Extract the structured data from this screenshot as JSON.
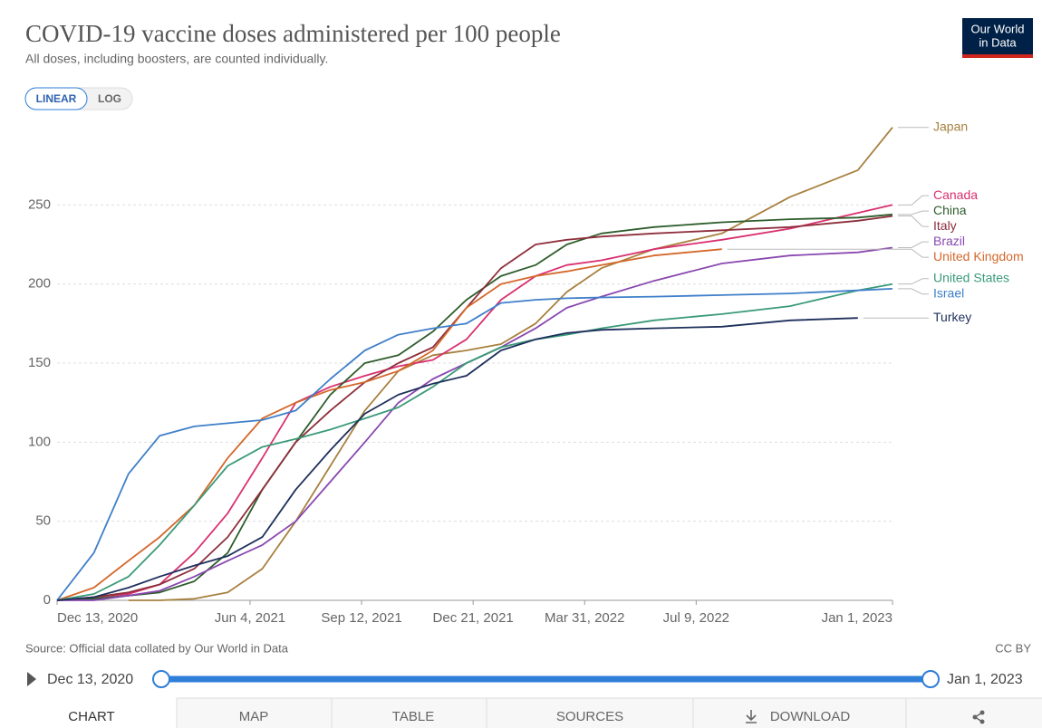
{
  "chart_data": {
    "type": "line",
    "title": "COVID-19 vaccine doses administered per 100 people",
    "subtitle": "All doses, including boosters, are counted individually.",
    "source": "Source: Official data collated by Our World in Data",
    "license": "CC BY",
    "scale_options": [
      "LINEAR",
      "LOG"
    ],
    "log_scale": false,
    "grid": true,
    "x": [
      "2020-12-13",
      "2021-01-15",
      "2021-02-15",
      "2021-03-15",
      "2021-04-15",
      "2021-05-15",
      "2021-06-15",
      "2021-07-15",
      "2021-08-15",
      "2021-09-15",
      "2021-10-15",
      "2021-11-15",
      "2021-12-15",
      "2022-01-15",
      "2022-02-15",
      "2022-03-15",
      "2022-04-15",
      "2022-06-01",
      "2022-08-01",
      "2022-10-01",
      "2022-12-01",
      "2023-01-01"
    ],
    "xlim": [
      "2020-12-13",
      "2023-01-01"
    ],
    "xticks": [
      {
        "value": "2020-12-13",
        "label": "Dec 13, 2020"
      },
      {
        "value": "2021-06-04",
        "label": "Jun 4, 2021"
      },
      {
        "value": "2021-09-12",
        "label": "Sep 12, 2021"
      },
      {
        "value": "2021-12-21",
        "label": "Dec 21, 2021"
      },
      {
        "value": "2022-03-31",
        "label": "Mar 31, 2022"
      },
      {
        "value": "2022-07-09",
        "label": "Jul 9, 2022"
      },
      {
        "value": "2023-01-01",
        "label": "Jan 1, 2023"
      }
    ],
    "ylim": [
      0,
      300
    ],
    "yticks": [
      0,
      50,
      100,
      150,
      200,
      250
    ],
    "series": [
      {
        "name": "Japan",
        "color": "#a8803f",
        "values": [
          null,
          null,
          0,
          0,
          1,
          5,
          20,
          50,
          85,
          120,
          145,
          155,
          158,
          162,
          175,
          195,
          210,
          222,
          232,
          255,
          272,
          299
        ]
      },
      {
        "name": "Canada",
        "color": "#d9306f",
        "values": [
          0,
          2,
          4,
          10,
          30,
          55,
          90,
          125,
          135,
          142,
          148,
          152,
          165,
          190,
          205,
          212,
          215,
          222,
          228,
          235,
          245,
          250
        ]
      },
      {
        "name": "China",
        "color": "#2e5d2c",
        "values": [
          0,
          1,
          3,
          5,
          12,
          30,
          70,
          100,
          130,
          150,
          155,
          170,
          190,
          205,
          212,
          225,
          232,
          236,
          239,
          241,
          242,
          244
        ]
      },
      {
        "name": "Italy",
        "color": "#8e2f3c",
        "values": [
          0,
          2,
          5,
          10,
          20,
          40,
          70,
          100,
          120,
          138,
          150,
          160,
          185,
          210,
          225,
          228,
          230,
          232,
          234,
          236,
          240,
          243
        ]
      },
      {
        "name": "United Kingdom",
        "color": "#d4682b",
        "values": [
          0,
          8,
          25,
          40,
          60,
          90,
          115,
          125,
          133,
          138,
          145,
          158,
          185,
          200,
          205,
          208,
          212,
          218,
          222,
          null,
          null,
          null
        ]
      },
      {
        "name": "Brazil",
        "color": "#8948b0",
        "values": [
          0,
          0,
          3,
          6,
          15,
          25,
          35,
          50,
          75,
          100,
          125,
          140,
          150,
          160,
          172,
          185,
          192,
          202,
          213,
          218,
          220,
          223
        ]
      },
      {
        "name": "United States",
        "color": "#3a9a78",
        "values": [
          0,
          4,
          15,
          35,
          60,
          85,
          97,
          102,
          108,
          115,
          122,
          135,
          150,
          160,
          165,
          168,
          172,
          177,
          181,
          186,
          196,
          200
        ]
      },
      {
        "name": "Israel",
        "color": "#3f7fc9",
        "values": [
          0,
          30,
          80,
          104,
          110,
          112,
          114,
          120,
          140,
          158,
          168,
          172,
          175,
          188,
          190,
          191,
          191.5,
          192,
          193,
          194,
          196,
          197
        ]
      },
      {
        "name": "Turkey",
        "color": "#1e2f5c",
        "values": [
          0,
          2,
          8,
          15,
          22,
          28,
          40,
          70,
          95,
          118,
          130,
          137,
          142,
          158,
          165,
          169,
          171,
          172,
          173,
          177,
          178.5,
          null
        ]
      }
    ]
  },
  "logo": [
    "Our World",
    "in Data"
  ],
  "timeline": {
    "start": "Dec 13, 2020",
    "end": "Jan 1, 2023"
  },
  "tabs": [
    "CHART",
    "MAP",
    "TABLE",
    "SOURCES",
    "DOWNLOAD"
  ]
}
